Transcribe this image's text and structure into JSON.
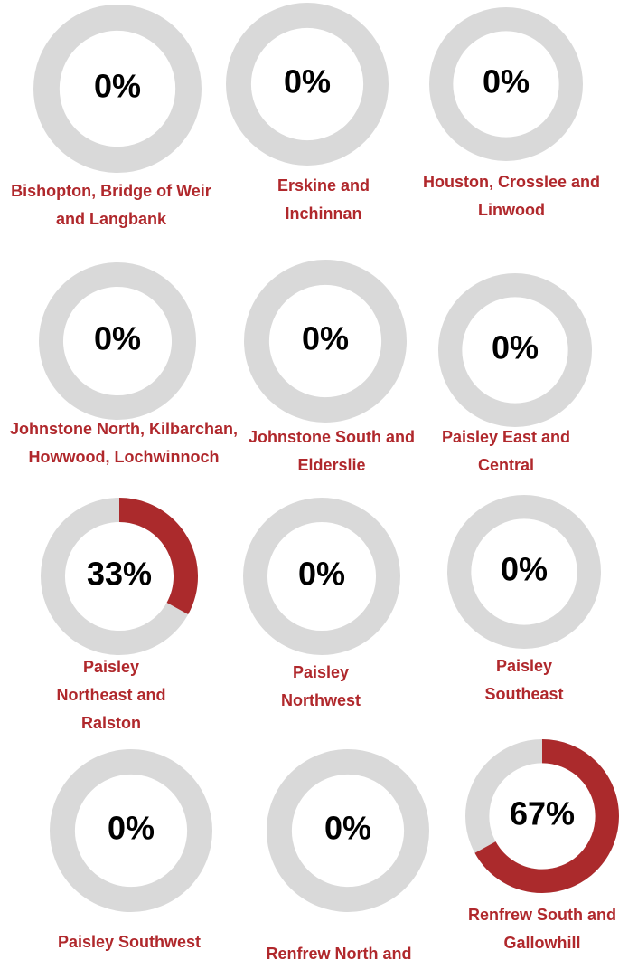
{
  "chart_data": [
    {
      "type": "donut",
      "title": "Bishopton, Bridge of Weir and Langbank",
      "values": [
        0
      ],
      "value_labels": [
        "0%"
      ],
      "ylim": [
        0,
        100
      ],
      "color": "#ab2a2c",
      "track_color": "#d9d9d9"
    },
    {
      "type": "donut",
      "title": "Erskine and Inchinnan",
      "values": [
        0
      ],
      "value_labels": [
        "0%"
      ],
      "ylim": [
        0,
        100
      ],
      "color": "#ab2a2c",
      "track_color": "#d9d9d9"
    },
    {
      "type": "donut",
      "title": "Houston, Crosslee and Linwood",
      "values": [
        0
      ],
      "value_labels": [
        "0%"
      ],
      "ylim": [
        0,
        100
      ],
      "color": "#ab2a2c",
      "track_color": "#d9d9d9"
    },
    {
      "type": "donut",
      "title": "Johnstone North, Kilbarchan, Howwood, Lochwinnoch",
      "values": [
        0
      ],
      "value_labels": [
        "0%"
      ],
      "ylim": [
        0,
        100
      ],
      "color": "#ab2a2c",
      "track_color": "#d9d9d9"
    },
    {
      "type": "donut",
      "title": "Johnstone South and Elderslie",
      "values": [
        0
      ],
      "value_labels": [
        "0%"
      ],
      "ylim": [
        0,
        100
      ],
      "color": "#ab2a2c",
      "track_color": "#d9d9d9"
    },
    {
      "type": "donut",
      "title": "Paisley East and Central",
      "values": [
        0
      ],
      "value_labels": [
        "0%"
      ],
      "ylim": [
        0,
        100
      ],
      "color": "#ab2a2c",
      "track_color": "#d9d9d9"
    },
    {
      "type": "donut",
      "title": "Paisley Northeast and Ralston",
      "values": [
        33
      ],
      "value_labels": [
        "33%"
      ],
      "ylim": [
        0,
        100
      ],
      "color": "#ab2a2c",
      "track_color": "#d9d9d9"
    },
    {
      "type": "donut",
      "title": "Paisley Northwest",
      "values": [
        0
      ],
      "value_labels": [
        "0%"
      ],
      "ylim": [
        0,
        100
      ],
      "color": "#ab2a2c",
      "track_color": "#d9d9d9"
    },
    {
      "type": "donut",
      "title": "Paisley Southeast",
      "values": [
        0
      ],
      "value_labels": [
        "0%"
      ],
      "ylim": [
        0,
        100
      ],
      "color": "#ab2a2c",
      "track_color": "#d9d9d9"
    },
    {
      "type": "donut",
      "title": "Paisley Southwest",
      "values": [
        0
      ],
      "value_labels": [
        "0%"
      ],
      "ylim": [
        0,
        100
      ],
      "color": "#ab2a2c",
      "track_color": "#d9d9d9"
    },
    {
      "type": "donut",
      "title": "Renfrew North and",
      "values": [
        0
      ],
      "value_labels": [
        "0%"
      ],
      "ylim": [
        0,
        100
      ],
      "color": "#ab2a2c",
      "track_color": "#d9d9d9"
    },
    {
      "type": "donut",
      "title": "Renfrew South and Gallowhill",
      "values": [
        67
      ],
      "value_labels": [
        "67%"
      ],
      "ylim": [
        0,
        100
      ],
      "color": "#ab2a2c",
      "track_color": "#d9d9d9"
    }
  ]
}
